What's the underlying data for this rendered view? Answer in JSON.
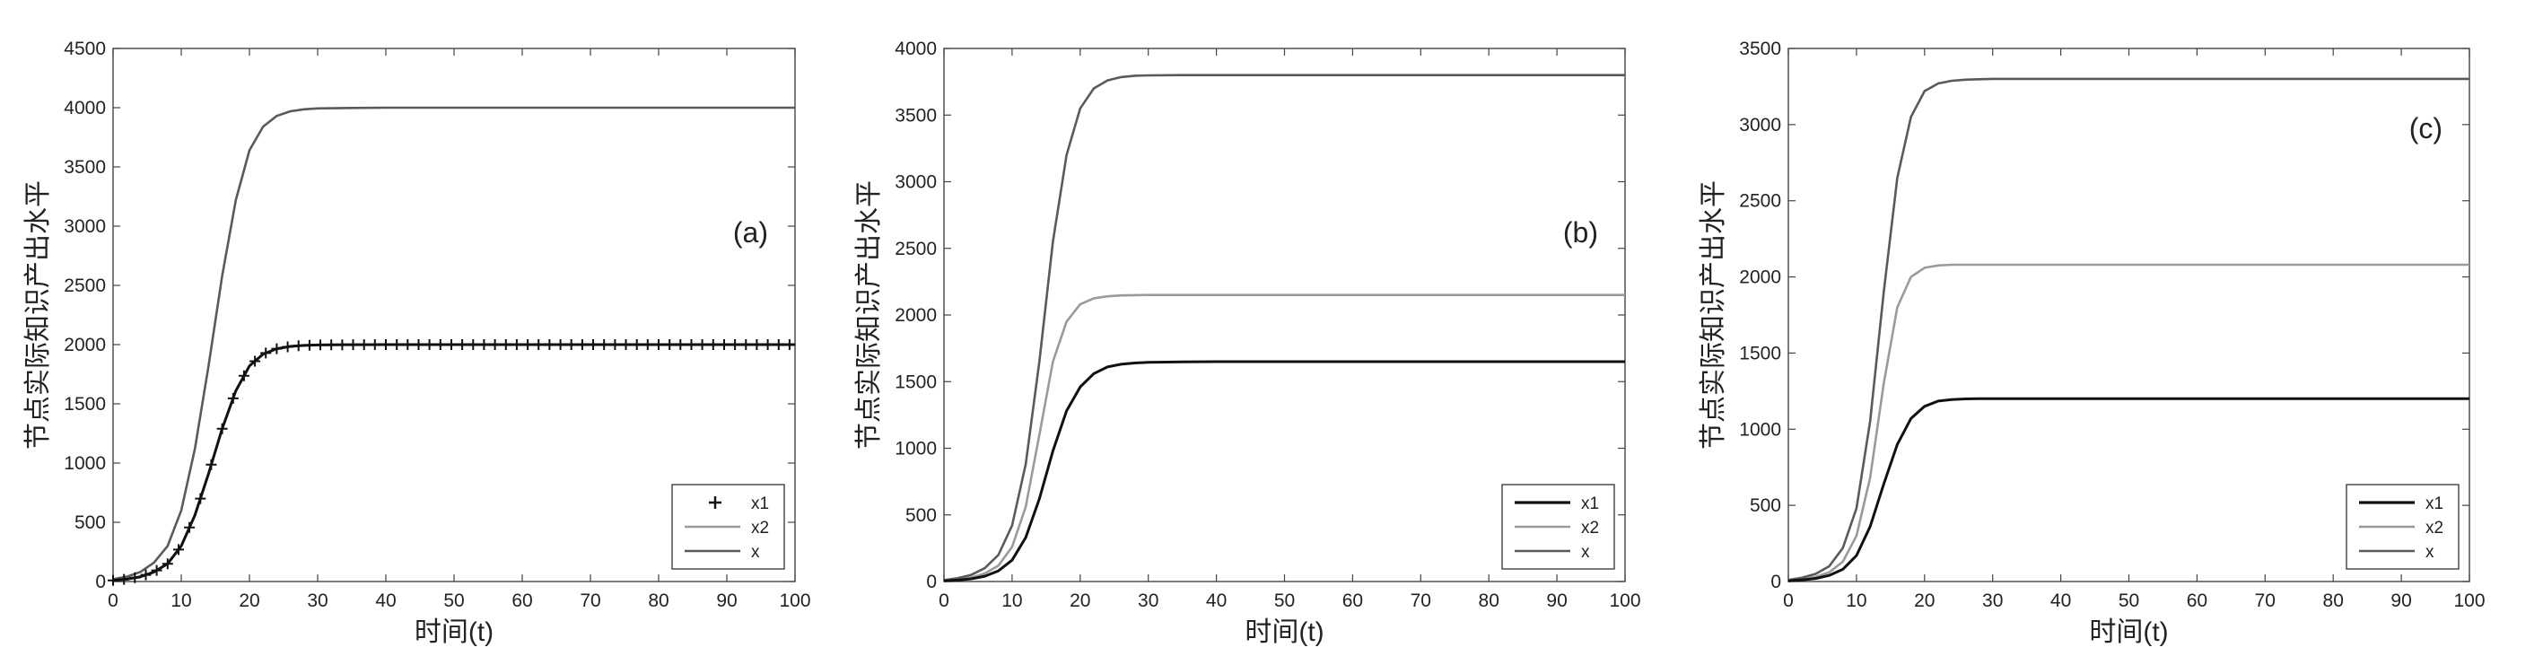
{
  "chart_data": [
    {
      "type": "line",
      "panel_label": "(a)",
      "xlabel": "时间(t)",
      "ylabel": "节点实际知识产出水平",
      "xlim": [
        0,
        100
      ],
      "ylim": [
        0,
        4500
      ],
      "xticks": [
        0,
        10,
        20,
        30,
        40,
        50,
        60,
        70,
        80,
        90,
        100
      ],
      "yticks": [
        0,
        500,
        1000,
        1500,
        2000,
        2500,
        3000,
        3500,
        4000,
        4500
      ],
      "legend_position": "bottom-right",
      "series": [
        {
          "name": "x1",
          "color": "#111111",
          "marker": "plus",
          "x": [
            0,
            2,
            4,
            6,
            8,
            10,
            12,
            14,
            16,
            18,
            20,
            22,
            24,
            26,
            28,
            30,
            35,
            40,
            45,
            50,
            55,
            60,
            65,
            70,
            75,
            80,
            85,
            90,
            95,
            100
          ],
          "y": [
            10,
            20,
            40,
            80,
            150,
            300,
            560,
            910,
            1290,
            1610,
            1820,
            1920,
            1965,
            1985,
            1993,
            1997,
            1999,
            2000,
            2000,
            2000,
            2000,
            2000,
            2000,
            2000,
            2000,
            2000,
            2000,
            2000,
            2000,
            2000
          ]
        },
        {
          "name": "x2",
          "color": "#9a9a9a",
          "x": [
            0,
            2,
            4,
            6,
            8,
            10,
            12,
            14,
            16,
            18,
            20,
            22,
            24,
            26,
            28,
            30,
            35,
            40,
            45,
            50,
            55,
            60,
            65,
            70,
            75,
            80,
            85,
            90,
            95,
            100
          ],
          "y": [
            10,
            20,
            40,
            80,
            150,
            300,
            560,
            910,
            1290,
            1610,
            1820,
            1920,
            1965,
            1985,
            1993,
            1997,
            1999,
            2000,
            2000,
            2000,
            2000,
            2000,
            2000,
            2000,
            2000,
            2000,
            2000,
            2000,
            2000,
            2000
          ]
        },
        {
          "name": "x",
          "color": "#5a5a5a",
          "x": [
            0,
            2,
            4,
            6,
            8,
            10,
            12,
            14,
            16,
            18,
            20,
            22,
            24,
            26,
            28,
            30,
            35,
            40,
            45,
            50,
            55,
            60,
            65,
            70,
            75,
            80,
            85,
            90,
            95,
            100
          ],
          "y": [
            20,
            40,
            80,
            160,
            300,
            600,
            1120,
            1820,
            2580,
            3220,
            3640,
            3840,
            3930,
            3970,
            3986,
            3994,
            3998,
            4000,
            4000,
            4000,
            4000,
            4000,
            4000,
            4000,
            4000,
            4000,
            4000,
            4000,
            4000,
            4000
          ]
        }
      ]
    },
    {
      "type": "line",
      "panel_label": "(b)",
      "xlabel": "时间(t)",
      "ylabel": "节点实际知识产出水平",
      "xlim": [
        0,
        100
      ],
      "ylim": [
        0,
        4000
      ],
      "xticks": [
        0,
        10,
        20,
        30,
        40,
        50,
        60,
        70,
        80,
        90,
        100
      ],
      "yticks": [
        0,
        500,
        1000,
        1500,
        2000,
        2500,
        3000,
        3500,
        4000
      ],
      "legend_position": "bottom-right",
      "series": [
        {
          "name": "x1",
          "color": "#111111",
          "x": [
            0,
            2,
            4,
            6,
            8,
            10,
            12,
            14,
            16,
            18,
            20,
            22,
            24,
            26,
            28,
            30,
            35,
            40,
            45,
            50,
            55,
            60,
            65,
            70,
            75,
            80,
            85,
            90,
            95,
            100
          ],
          "y": [
            5,
            10,
            20,
            40,
            80,
            160,
            330,
            620,
            980,
            1280,
            1460,
            1560,
            1610,
            1630,
            1640,
            1645,
            1648,
            1650,
            1650,
            1650,
            1650,
            1650,
            1650,
            1650,
            1650,
            1650,
            1650,
            1650,
            1650,
            1650
          ]
        },
        {
          "name": "x2",
          "color": "#9a9a9a",
          "x": [
            0,
            2,
            4,
            6,
            8,
            10,
            12,
            14,
            16,
            18,
            20,
            22,
            24,
            26,
            28,
            30,
            35,
            40,
            45,
            50,
            55,
            60,
            65,
            70,
            75,
            80,
            85,
            90,
            95,
            100
          ],
          "y": [
            8,
            15,
            30,
            60,
            120,
            260,
            560,
            1100,
            1650,
            1950,
            2080,
            2125,
            2140,
            2147,
            2149,
            2150,
            2150,
            2150,
            2150,
            2150,
            2150,
            2150,
            2150,
            2150,
            2150,
            2150,
            2150,
            2150,
            2150,
            2150
          ]
        },
        {
          "name": "x",
          "color": "#5a5a5a",
          "x": [
            0,
            2,
            4,
            6,
            8,
            10,
            12,
            14,
            16,
            18,
            20,
            22,
            24,
            26,
            28,
            30,
            35,
            40,
            45,
            50,
            55,
            60,
            65,
            70,
            75,
            80,
            85,
            90,
            95,
            100
          ],
          "y": [
            10,
            25,
            50,
            100,
            200,
            420,
            880,
            1650,
            2550,
            3200,
            3550,
            3700,
            3760,
            3785,
            3795,
            3798,
            3800,
            3800,
            3800,
            3800,
            3800,
            3800,
            3800,
            3800,
            3800,
            3800,
            3800,
            3800,
            3800,
            3800
          ]
        }
      ]
    },
    {
      "type": "line",
      "panel_label": "(c)",
      "xlabel": "时间(t)",
      "ylabel": "节点实际知识产出水平",
      "xlim": [
        0,
        100
      ],
      "ylim": [
        0,
        3500
      ],
      "xticks": [
        0,
        10,
        20,
        30,
        40,
        50,
        60,
        70,
        80,
        90,
        100
      ],
      "yticks": [
        0,
        500,
        1000,
        1500,
        2000,
        2500,
        3000,
        3500
      ],
      "legend_position": "bottom-right",
      "series": [
        {
          "name": "x1",
          "color": "#111111",
          "x": [
            0,
            2,
            4,
            6,
            8,
            10,
            12,
            14,
            16,
            18,
            20,
            22,
            24,
            26,
            28,
            30,
            35,
            40,
            45,
            50,
            55,
            60,
            65,
            70,
            75,
            80,
            85,
            90,
            95,
            100
          ],
          "y": [
            5,
            10,
            20,
            40,
            80,
            170,
            360,
            640,
            900,
            1070,
            1150,
            1185,
            1195,
            1199,
            1200,
            1200,
            1200,
            1200,
            1200,
            1200,
            1200,
            1200,
            1200,
            1200,
            1200,
            1200,
            1200,
            1200,
            1200,
            1200
          ]
        },
        {
          "name": "x2",
          "color": "#9a9a9a",
          "x": [
            0,
            2,
            4,
            6,
            8,
            10,
            12,
            14,
            16,
            18,
            20,
            22,
            24,
            26,
            28,
            30,
            35,
            40,
            45,
            50,
            55,
            60,
            65,
            70,
            75,
            80,
            85,
            90,
            95,
            100
          ],
          "y": [
            8,
            15,
            30,
            60,
            130,
            300,
            680,
            1300,
            1800,
            2000,
            2060,
            2075,
            2080,
            2080,
            2080,
            2080,
            2080,
            2080,
            2080,
            2080,
            2080,
            2080,
            2080,
            2080,
            2080,
            2080,
            2080,
            2080,
            2080,
            2080
          ]
        },
        {
          "name": "x",
          "color": "#5a5a5a",
          "x": [
            0,
            2,
            4,
            6,
            8,
            10,
            12,
            14,
            16,
            18,
            20,
            22,
            24,
            26,
            28,
            30,
            35,
            40,
            45,
            50,
            55,
            60,
            65,
            70,
            75,
            80,
            85,
            90,
            95,
            100
          ],
          "y": [
            10,
            25,
            50,
            100,
            220,
            480,
            1050,
            1900,
            2650,
            3050,
            3220,
            3270,
            3288,
            3295,
            3298,
            3300,
            3300,
            3300,
            3300,
            3300,
            3300,
            3300,
            3300,
            3300,
            3300,
            3300,
            3300,
            3300,
            3300,
            3300
          ]
        }
      ]
    }
  ]
}
